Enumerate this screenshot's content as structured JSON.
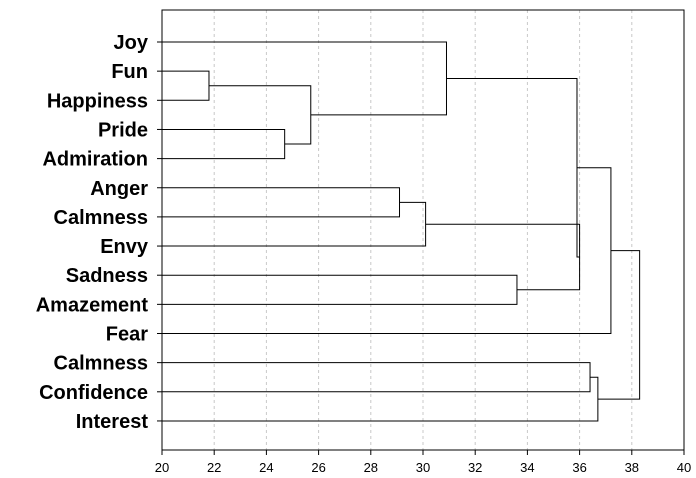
{
  "chart_data": {
    "type": "dendrogram",
    "title": "",
    "xlabel": "",
    "ylabel": "",
    "xlim": [
      20,
      40
    ],
    "xticks": [
      "20",
      "22",
      "24",
      "26",
      "28",
      "30",
      "32",
      "34",
      "36",
      "38",
      "40"
    ],
    "grid": "vertical dashed",
    "leaves": [
      "Joy",
      "Fun",
      "Happiness",
      "Pride",
      "Admiration",
      "Anger",
      "Calmness",
      "Envy",
      "Sadness",
      "Amazement",
      "Fear",
      "Calmness",
      "Confidence",
      "Interest"
    ],
    "merges": [
      {
        "id": "m1",
        "children": [
          1,
          2
        ],
        "height": 21.8
      },
      {
        "id": "m2",
        "children": [
          3,
          4
        ],
        "height": 24.7
      },
      {
        "id": "m3",
        "children": [
          "m1",
          "m2"
        ],
        "height": 25.7
      },
      {
        "id": "m4",
        "children": [
          0,
          "m3"
        ],
        "height": 30.9
      },
      {
        "id": "m5",
        "children": [
          5,
          6
        ],
        "height": 29.1
      },
      {
        "id": "m6",
        "children": [
          "m5",
          7
        ],
        "height": 30.1
      },
      {
        "id": "m7",
        "children": [
          8,
          9
        ],
        "height": 33.6
      },
      {
        "id": "m8",
        "children": [
          "m6",
          "m7"
        ],
        "height": 36.0
      },
      {
        "id": "m9",
        "children": [
          "m4",
          "m8"
        ],
        "height": 35.9
      },
      {
        "id": "m10",
        "children": [
          "m9",
          10
        ],
        "height": 37.2
      },
      {
        "id": "m11",
        "children": [
          11,
          12
        ],
        "height": 36.4
      },
      {
        "id": "m12",
        "children": [
          "m11",
          13
        ],
        "height": 36.7
      },
      {
        "id": "m13",
        "children": [
          "m10",
          "m12"
        ],
        "height": 38.3
      }
    ]
  }
}
